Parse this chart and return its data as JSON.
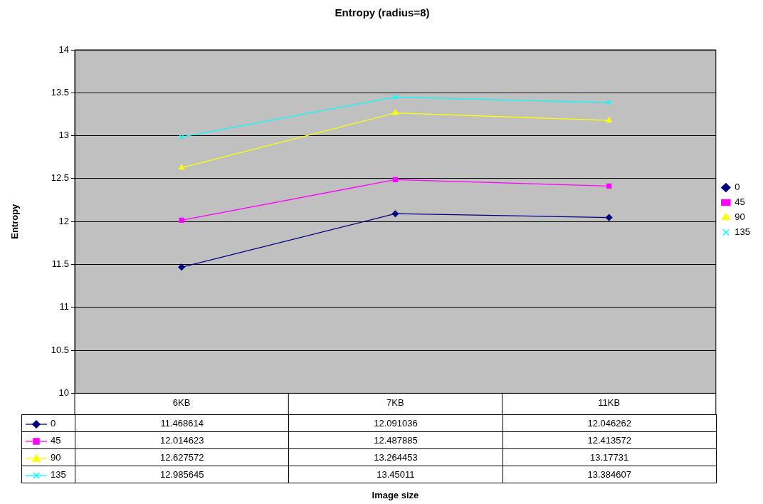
{
  "chart_data": {
    "type": "line",
    "title": "Entropy (radius=8)",
    "annotations": [
      "Image size"
    ],
    "ylabel": "Entropy",
    "categories": [
      "6KB",
      "7KB",
      "11KB"
    ],
    "series": [
      {
        "name": "0",
        "color": "#000080",
        "marker": "diamond",
        "values": [
          11.468614,
          12.091036,
          12.046262
        ]
      },
      {
        "name": "45",
        "color": "#ff00ff",
        "marker": "square",
        "values": [
          12.014623,
          12.487885,
          12.413572
        ]
      },
      {
        "name": "90",
        "color": "#ffff00",
        "marker": "triangle",
        "values": [
          12.627572,
          13.264453,
          13.17731
        ]
      },
      {
        "name": "135",
        "color": "#00ffff",
        "marker": "cross",
        "values": [
          12.985645,
          13.45011,
          13.384607
        ]
      }
    ],
    "ylim": [
      10,
      14
    ],
    "yticks": [
      10,
      10.5,
      11,
      11.5,
      12,
      12.5,
      13,
      13.5,
      14
    ],
    "grid": "y",
    "legend": "right",
    "data_labels": true
  }
}
